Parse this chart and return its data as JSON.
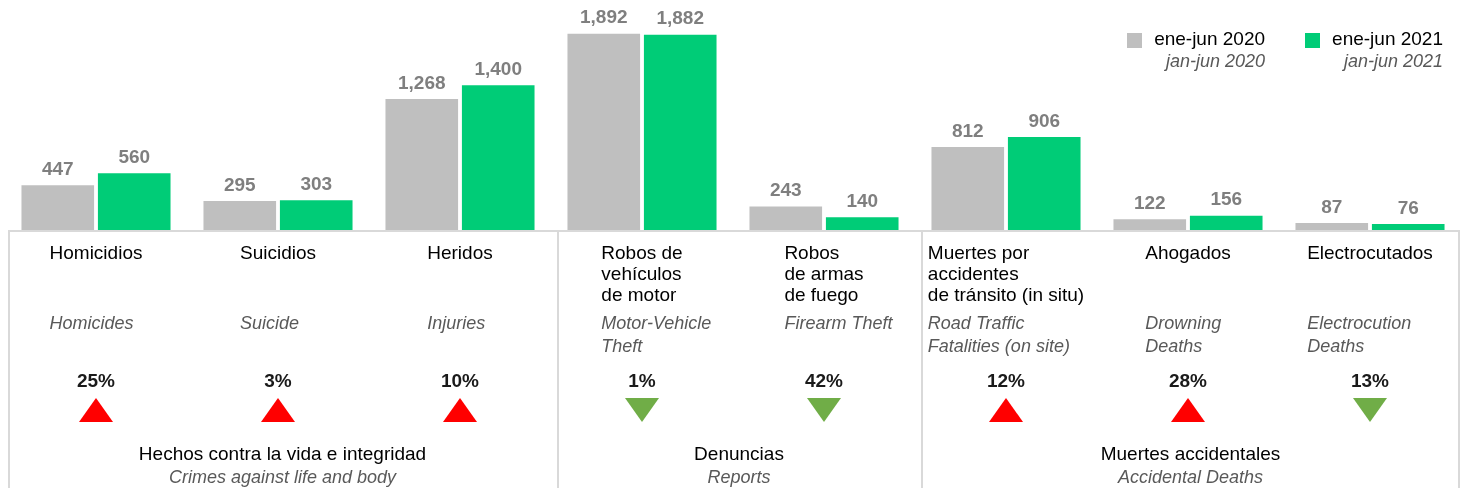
{
  "chart_data": {
    "type": "bar",
    "categories": [
      "Homicidios",
      "Suicidios",
      "Heridos",
      "Robos de\nvehículos\nde motor",
      "Robos\nde armas\nde fuego",
      "Muertes por\naccidentes\nde tránsito (in situ)",
      "Ahogados",
      "Electrocutados"
    ],
    "series": [
      {
        "name": "ene-jun 2020\njan-jun 2020",
        "color": "#bfbfbf",
        "values": [
          447,
          295,
          1268,
          1892,
          243,
          812,
          122,
          87
        ],
        "value_labels": [
          "447",
          "295",
          "1,268",
          "1,892",
          "243",
          "812",
          "122",
          "87"
        ]
      },
      {
        "name": "ene-jun 2021\njan-jun 2021",
        "color": "#00cc77",
        "values": [
          560,
          303,
          1400,
          1882,
          140,
          906,
          156,
          76
        ],
        "value_labels": [
          "560",
          "303",
          "1,400",
          "1,882",
          "140",
          "906",
          "156",
          "76"
        ]
      }
    ],
    "legend": "top right",
    "annotations": [
      "Homicides",
      "25%",
      "Suicide",
      "3%",
      "Injuries",
      "10%",
      "Motor-Vehicle\nTheft",
      "1%",
      "Firearm Theft",
      "42%",
      "Road Traffic\nFatalities (on site)",
      "12%",
      "Drowning\nDeaths",
      "28%",
      "Electrocution\nDeaths",
      "13%",
      "Hechos contra la vida e integridad",
      "Crimes against life and body",
      "Denuncias",
      "Reports",
      "Muertes accidentales",
      "Accidental Deaths"
    ]
  }
}
